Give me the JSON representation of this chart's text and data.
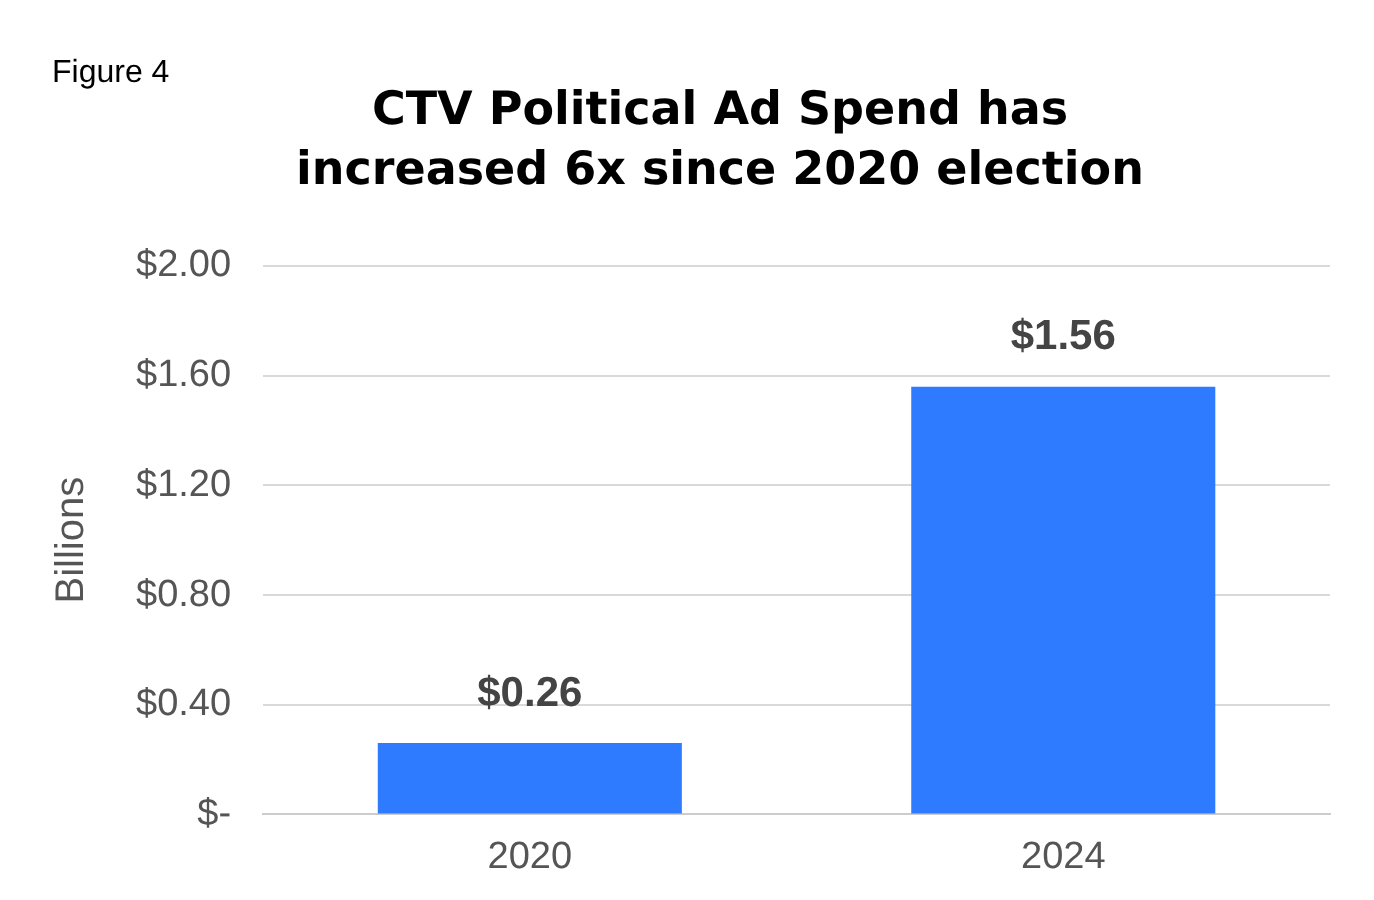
{
  "chart_data": {
    "type": "bar",
    "title": "CTV Political Ad Spend has increased 6x since 2020 election",
    "annotations": [
      "Figure 4"
    ],
    "ylabel": "Billions",
    "categories": [
      "2020",
      "2024"
    ],
    "values": [
      0.26,
      1.56
    ],
    "value_labels": [
      "$0.26",
      "$1.56"
    ],
    "color": "#2f7bff",
    "ylim": [
      0,
      2
    ],
    "yticks": [
      {
        "value": 0,
        "label": "$-"
      },
      {
        "value": 0.4,
        "label": "$0.40"
      },
      {
        "value": 0.8,
        "label": "$0.80"
      },
      {
        "value": 1.2,
        "label": "$1.20"
      },
      {
        "value": 1.6,
        "label": "$1.60"
      },
      {
        "value": 2,
        "label": "$2.00"
      }
    ],
    "grid": "y",
    "legend": false
  }
}
